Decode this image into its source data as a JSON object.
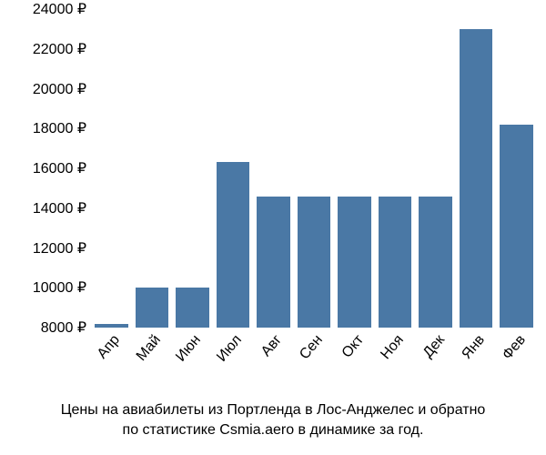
{
  "chart": {
    "type": "bar",
    "background_color": "#ffffff",
    "bar_color": "#4a78a5",
    "text_color": "#000000",
    "font_family": "Arial",
    "label_fontsize": 16,
    "caption_fontsize": 16,
    "bar_width": 0.82,
    "currency_symbol": "₽",
    "ylim": [
      8000,
      24000
    ],
    "ytick_step": 2000,
    "yticks": [
      {
        "value": 8000,
        "label": "8000 ₽"
      },
      {
        "value": 10000,
        "label": "10000 ₽"
      },
      {
        "value": 12000,
        "label": "12000 ₽"
      },
      {
        "value": 14000,
        "label": "14000 ₽"
      },
      {
        "value": 16000,
        "label": "16000 ₽"
      },
      {
        "value": 18000,
        "label": "18000 ₽"
      },
      {
        "value": 20000,
        "label": "20000 ₽"
      },
      {
        "value": 22000,
        "label": "22000 ₽"
      },
      {
        "value": 24000,
        "label": "24000 ₽"
      }
    ],
    "x_label_rotation_deg": -50,
    "categories": [
      "Апр",
      "Май",
      "Июн",
      "Июл",
      "Авг",
      "Сен",
      "Окт",
      "Ноя",
      "Дек",
      "Янв",
      "Фев"
    ],
    "values": [
      8200,
      10000,
      10000,
      16300,
      14600,
      14600,
      14600,
      14600,
      14600,
      23000,
      18200
    ],
    "caption_line1": "Цены на авиабилеты из Портленда в Лос-Анджелес и обратно",
    "caption_line2": "по статистике Csmia.aero в динамике за год."
  }
}
